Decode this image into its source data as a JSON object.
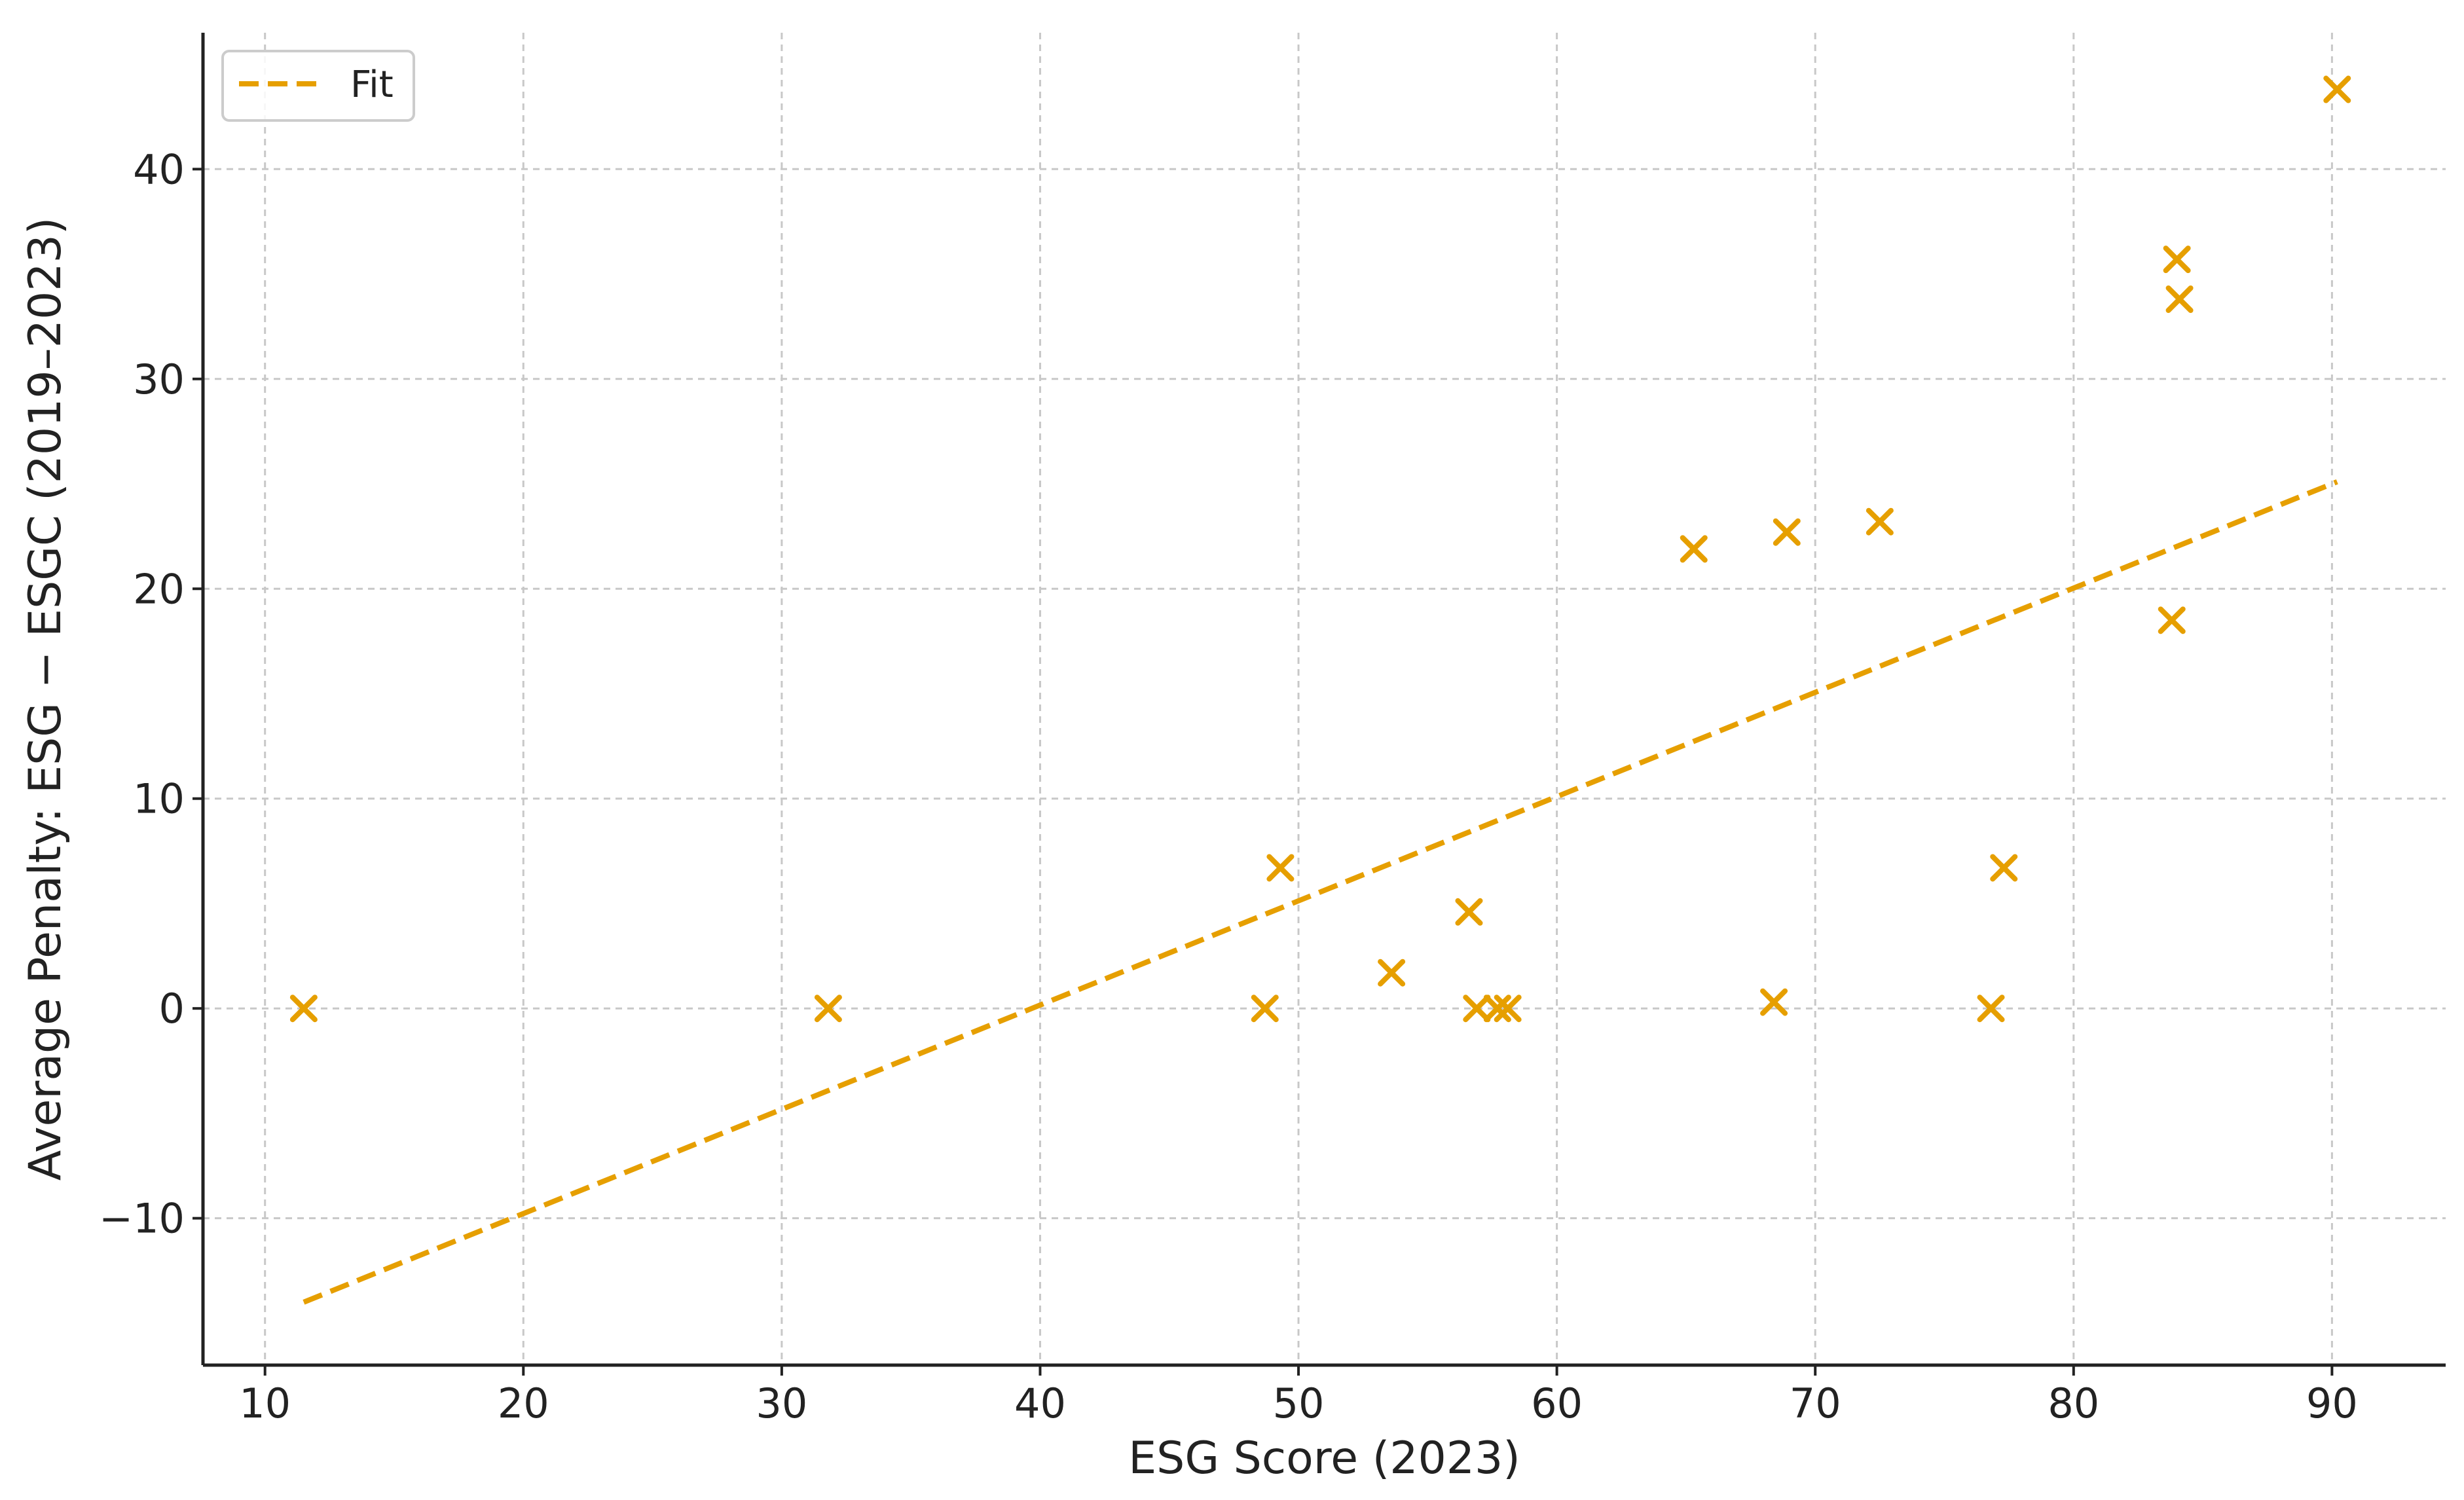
{
  "chart_data": {
    "type": "scatter",
    "title": "",
    "xlabel": "ESG Score (2023)",
    "ylabel": "Average Penalty: ESG − ESGC (2019–2023)",
    "xlim": [
      7.6,
      94.4
    ],
    "ylim": [
      -17,
      46.5
    ],
    "xticks": [
      10,
      20,
      30,
      40,
      50,
      60,
      70,
      80,
      90
    ],
    "yticks": [
      -10,
      0,
      10,
      20,
      30,
      40
    ],
    "xtick_labels": [
      "10",
      "20",
      "30",
      "40",
      "50",
      "60",
      "70",
      "80",
      "90"
    ],
    "ytick_labels": [
      "−10",
      "0",
      "10",
      "20",
      "30",
      "40"
    ],
    "grid": true,
    "legend_position": "top-left",
    "color": "#E69F00",
    "series": [
      {
        "type": "scatter",
        "marker": "x",
        "points": [
          {
            "x": 11.5,
            "y": 0.0
          },
          {
            "x": 31.8,
            "y": 0.0
          },
          {
            "x": 48.7,
            "y": 0.0
          },
          {
            "x": 49.3,
            "y": 6.7
          },
          {
            "x": 53.6,
            "y": 1.7
          },
          {
            "x": 56.6,
            "y": 4.6
          },
          {
            "x": 56.9,
            "y": 0.0
          },
          {
            "x": 57.7,
            "y": 0.0
          },
          {
            "x": 58.1,
            "y": 0.0
          },
          {
            "x": 65.3,
            "y": 21.9
          },
          {
            "x": 68.4,
            "y": 0.3
          },
          {
            "x": 68.9,
            "y": 22.7
          },
          {
            "x": 72.5,
            "y": 23.2
          },
          {
            "x": 76.8,
            "y": 0.0
          },
          {
            "x": 77.3,
            "y": 6.7
          },
          {
            "x": 83.8,
            "y": 18.5
          },
          {
            "x": 84.0,
            "y": 35.7
          },
          {
            "x": 84.1,
            "y": 33.8
          },
          {
            "x": 90.2,
            "y": 43.8
          }
        ]
      },
      {
        "name": "Fit",
        "type": "line",
        "style": "dashed",
        "x": [
          11.5,
          90.2
        ],
        "y": [
          -14.0,
          25.1
        ]
      }
    ]
  }
}
